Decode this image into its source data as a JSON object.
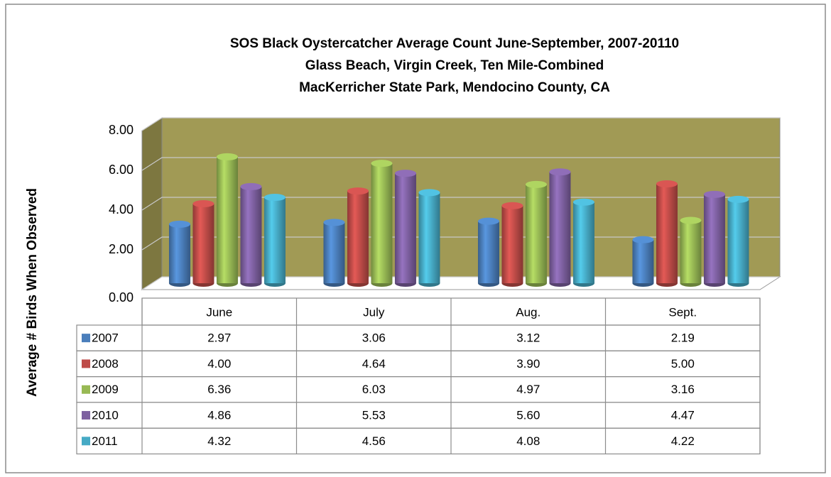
{
  "chart_data": {
    "type": "bar3d",
    "title": [
      "SOS Black Oystercatcher Average Count June-September, 2007-20110",
      "Glass Beach, Virgin Creek, Ten Mile-Combined",
      "MacKerricher State Park, Mendocino County, CA"
    ],
    "ylabel": "Average # Birds When Observed",
    "categories": [
      "June",
      "July",
      "Aug.",
      "Sept."
    ],
    "series": [
      {
        "name": "2007",
        "color": "#4a7ebb",
        "values": [
          2.97,
          3.06,
          3.12,
          2.19
        ],
        "value_labels": [
          "2.97",
          "3.06",
          "3.12",
          "2.19"
        ]
      },
      {
        "name": "2008",
        "color": "#be4b48",
        "values": [
          4.0,
          4.64,
          3.9,
          5.0
        ],
        "value_labels": [
          "4.00",
          "4.64",
          "3.90",
          "5.00"
        ]
      },
      {
        "name": "2009",
        "color": "#98b954",
        "values": [
          6.36,
          6.03,
          4.97,
          3.16
        ],
        "value_labels": [
          "6.36",
          "6.03",
          "4.97",
          "3.16"
        ]
      },
      {
        "name": "2010",
        "color": "#7d60a0",
        "values": [
          4.86,
          5.53,
          5.6,
          4.47
        ],
        "value_labels": [
          "4.86",
          "5.53",
          "5.60",
          "4.47"
        ]
      },
      {
        "name": "2011",
        "color": "#46aac5",
        "values": [
          4.32,
          4.56,
          4.08,
          4.22
        ],
        "value_labels": [
          "4.32",
          "4.56",
          "4.08",
          "4.22"
        ]
      }
    ],
    "ylim": [
      0,
      8
    ],
    "yticks": [
      {
        "value": 0,
        "label": "0.00"
      },
      {
        "value": 2,
        "label": "2.00"
      },
      {
        "value": 4,
        "label": "4.00"
      },
      {
        "value": 6,
        "label": "6.00"
      },
      {
        "value": 8,
        "label": "8.00"
      }
    ],
    "grid": true,
    "wall_color": "#a19a55"
  }
}
